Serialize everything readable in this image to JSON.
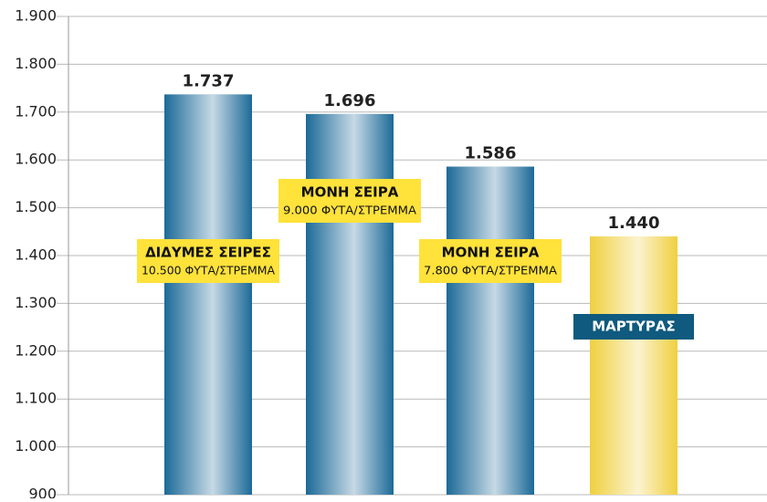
{
  "chart_data": {
    "type": "bar",
    "categories": [
      "ΔΙΔΥΜΕΣ ΣΕΙΡΕΣ",
      "ΜΟΝΗ ΣΕΙΡΑ",
      "ΜΟΝΗ ΣΕΙΡΑ",
      "ΜΑΡΤΥΡΑΣ"
    ],
    "category_notes": [
      "10.500 ΦΥΤΑ/ΣΤΡΕΜΜΑ",
      "9.000 ΦΥΤΑ/ΣΤΡΕΜΜΑ",
      "7.800 ΦΥΤΑ/ΣΤΡΕΜΜΑ",
      null
    ],
    "values": [
      1737,
      1696,
      1586,
      1440
    ],
    "value_labels": [
      "1.737",
      "1.696",
      "1.586",
      "1.440"
    ],
    "colors": [
      "#1c6a98",
      "#1c6a98",
      "#1c6a98",
      "#f0d040"
    ],
    "label_box_colors": [
      "#ffe23a",
      "#ffe23a",
      "#ffe23a",
      "#0f5a7e"
    ],
    "label_text_colors": [
      "#111111",
      "#111111",
      "#111111",
      "#ffffff"
    ],
    "ylim": [
      900,
      1900
    ],
    "yticks": [
      900,
      {
        "value": 1000,
        "label": "1.000"
      },
      {
        "value": 1100,
        "label": "1.100"
      },
      {
        "value": 1200,
        "label": "1.200"
      },
      {
        "value": 1300,
        "label": "1.300"
      },
      {
        "value": 1400,
        "label": "1.400"
      },
      {
        "value": 1500,
        "label": "1.500"
      },
      {
        "value": 1600,
        "label": "1.600"
      },
      {
        "value": 1700,
        "label": "1.700"
      },
      {
        "value": 1800,
        "label": "1.800"
      },
      {
        "value": 1900,
        "label": "1.900"
      }
    ],
    "grid": true
  }
}
